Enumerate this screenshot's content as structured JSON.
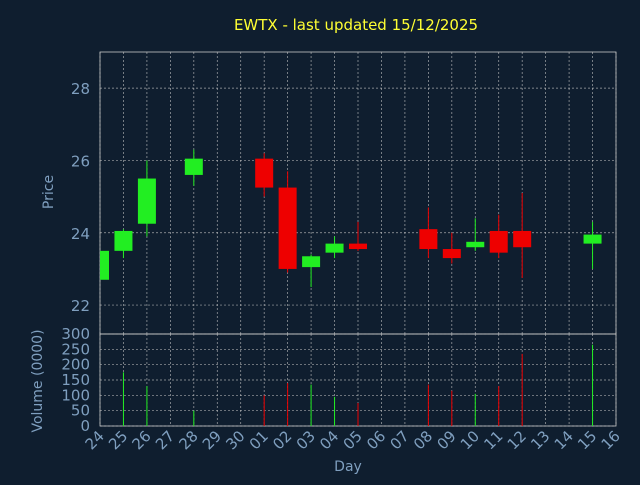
{
  "chart_data": {
    "type": "candlestick",
    "title": "EWTX - last updated 15/12/2025",
    "xlabel": "Day",
    "price_panel": {
      "ylabel": "Price",
      "ylim": [
        21.2,
        29.0
      ],
      "yticks": [
        22,
        24,
        26,
        28
      ]
    },
    "volume_panel": {
      "ylabel": "Volume (0000)",
      "ylim": [
        0,
        300
      ],
      "yticks": [
        0,
        50,
        100,
        150,
        200,
        250,
        300
      ]
    },
    "x_tick_labels": [
      "24",
      "25",
      "26",
      "27",
      "28",
      "29",
      "30",
      "01",
      "02",
      "03",
      "04",
      "05",
      "06",
      "07",
      "08",
      "09",
      "10",
      "11",
      "12",
      "13",
      "14",
      "15",
      "16"
    ],
    "grid": true,
    "colors": {
      "background": "#0f1e2f",
      "grid": "#c8c8c8",
      "title": "#ffff33",
      "axis_text": "#7f9fbf",
      "up": "#22ee22",
      "down": "#ee0000"
    },
    "candles": [
      {
        "day": "24",
        "open": 22.7,
        "high": 23.5,
        "low": 22.7,
        "close": 23.5,
        "volume": 0
      },
      {
        "day": "25",
        "open": 23.5,
        "high": 24.1,
        "low": 23.3,
        "close": 24.05,
        "volume": 175
      },
      {
        "day": "26",
        "open": 24.25,
        "high": 26.0,
        "low": 23.9,
        "close": 25.5,
        "volume": 130
      },
      {
        "day": "28",
        "open": 25.6,
        "high": 26.3,
        "low": 25.3,
        "close": 26.05,
        "volume": 50
      },
      {
        "day": "01",
        "open": 26.05,
        "high": 26.2,
        "low": 25.0,
        "close": 25.25,
        "volume": 100
      },
      {
        "day": "02",
        "open": 25.25,
        "high": 25.7,
        "low": 22.9,
        "close": 23.0,
        "volume": 140
      },
      {
        "day": "03",
        "open": 23.05,
        "high": 23.4,
        "low": 22.5,
        "close": 23.35,
        "volume": 135
      },
      {
        "day": "04",
        "open": 23.45,
        "high": 23.9,
        "low": 23.3,
        "close": 23.7,
        "volume": 95
      },
      {
        "day": "05",
        "open": 23.7,
        "high": 24.3,
        "low": 23.5,
        "close": 23.55,
        "volume": 75
      },
      {
        "day": "08",
        "open": 24.1,
        "high": 24.7,
        "low": 23.3,
        "close": 23.55,
        "volume": 135
      },
      {
        "day": "09",
        "open": 23.55,
        "high": 24.0,
        "low": 23.15,
        "close": 23.3,
        "volume": 115
      },
      {
        "day": "10",
        "open": 23.6,
        "high": 24.4,
        "low": 23.5,
        "close": 23.75,
        "volume": 105
      },
      {
        "day": "11",
        "open": 24.05,
        "high": 24.5,
        "low": 23.3,
        "close": 23.45,
        "volume": 130
      },
      {
        "day": "12",
        "open": 24.05,
        "high": 25.1,
        "low": 22.75,
        "close": 23.6,
        "volume": 235
      },
      {
        "day": "15",
        "open": 23.7,
        "high": 24.3,
        "low": 23.0,
        "close": 23.95,
        "volume": 265
      }
    ]
  }
}
